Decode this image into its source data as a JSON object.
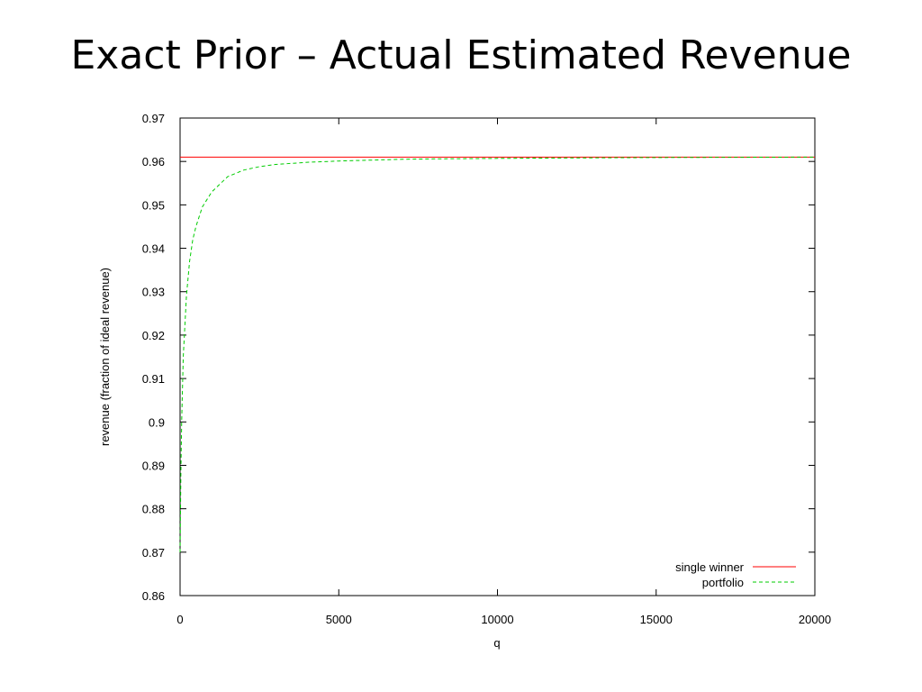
{
  "slide": {
    "title": "Exact Prior – Actual Estimated Revenue"
  },
  "chart_data": {
    "type": "line",
    "title": "",
    "xlabel": "q",
    "ylabel": "revenue (fraction of ideal revenue)",
    "xlim": [
      0,
      20000
    ],
    "ylim": [
      0.86,
      0.97
    ],
    "x_ticks": [
      "0",
      "5000",
      "10000",
      "15000",
      "20000"
    ],
    "x_tick_values": [
      0,
      5000,
      10000,
      15000,
      20000
    ],
    "y_ticks": [
      "0.86",
      "0.87",
      "0.88",
      "0.89",
      "0.9",
      "0.91",
      "0.92",
      "0.93",
      "0.94",
      "0.95",
      "0.96",
      "0.97"
    ],
    "y_tick_values": [
      0.86,
      0.87,
      0.88,
      0.89,
      0.9,
      0.91,
      0.92,
      0.93,
      0.94,
      0.95,
      0.96,
      0.97
    ],
    "grid": false,
    "legend_position": "bottom-right",
    "series": [
      {
        "name": "single winner",
        "color": "#ff0000",
        "style": "solid",
        "x": [
          0,
          20000
        ],
        "y": [
          0.961,
          0.961
        ]
      },
      {
        "name": "portfolio",
        "color": "#00cc00",
        "style": "dashed",
        "x": [
          0,
          25,
          50,
          100,
          200,
          300,
          400,
          500,
          700,
          1000,
          1500,
          2000,
          2500,
          3000,
          4000,
          5000,
          6000,
          7000,
          8000,
          10000,
          12000,
          15000,
          20000
        ],
        "y": [
          0.87,
          0.888,
          0.9,
          0.915,
          0.929,
          0.937,
          0.942,
          0.945,
          0.9495,
          0.953,
          0.9565,
          0.958,
          0.9588,
          0.9593,
          0.9598,
          0.9601,
          0.9603,
          0.9605,
          0.9606,
          0.9607,
          0.9608,
          0.9609,
          0.961
        ]
      }
    ]
  }
}
